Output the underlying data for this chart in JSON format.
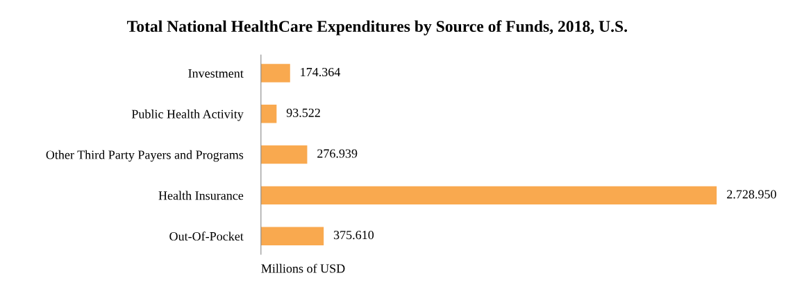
{
  "chart_data": {
    "type": "bar",
    "orientation": "horizontal",
    "title": "Total National HealthCare Expenditures by Source of Funds, 2018, U.S.",
    "xlabel": "Millions of USD",
    "categories": [
      "Investment",
      "Public Health Activity",
      "Other Third Party Payers and Programs",
      "Health Insurance",
      "Out-Of-Pocket"
    ],
    "values": [
      174364,
      93522,
      276939,
      2728950,
      375610
    ],
    "value_labels": [
      "174.364",
      "93.522",
      "276.939",
      "2.728.950",
      "375.610"
    ],
    "color": "#f9a94f",
    "grid": false,
    "legend": false
  }
}
